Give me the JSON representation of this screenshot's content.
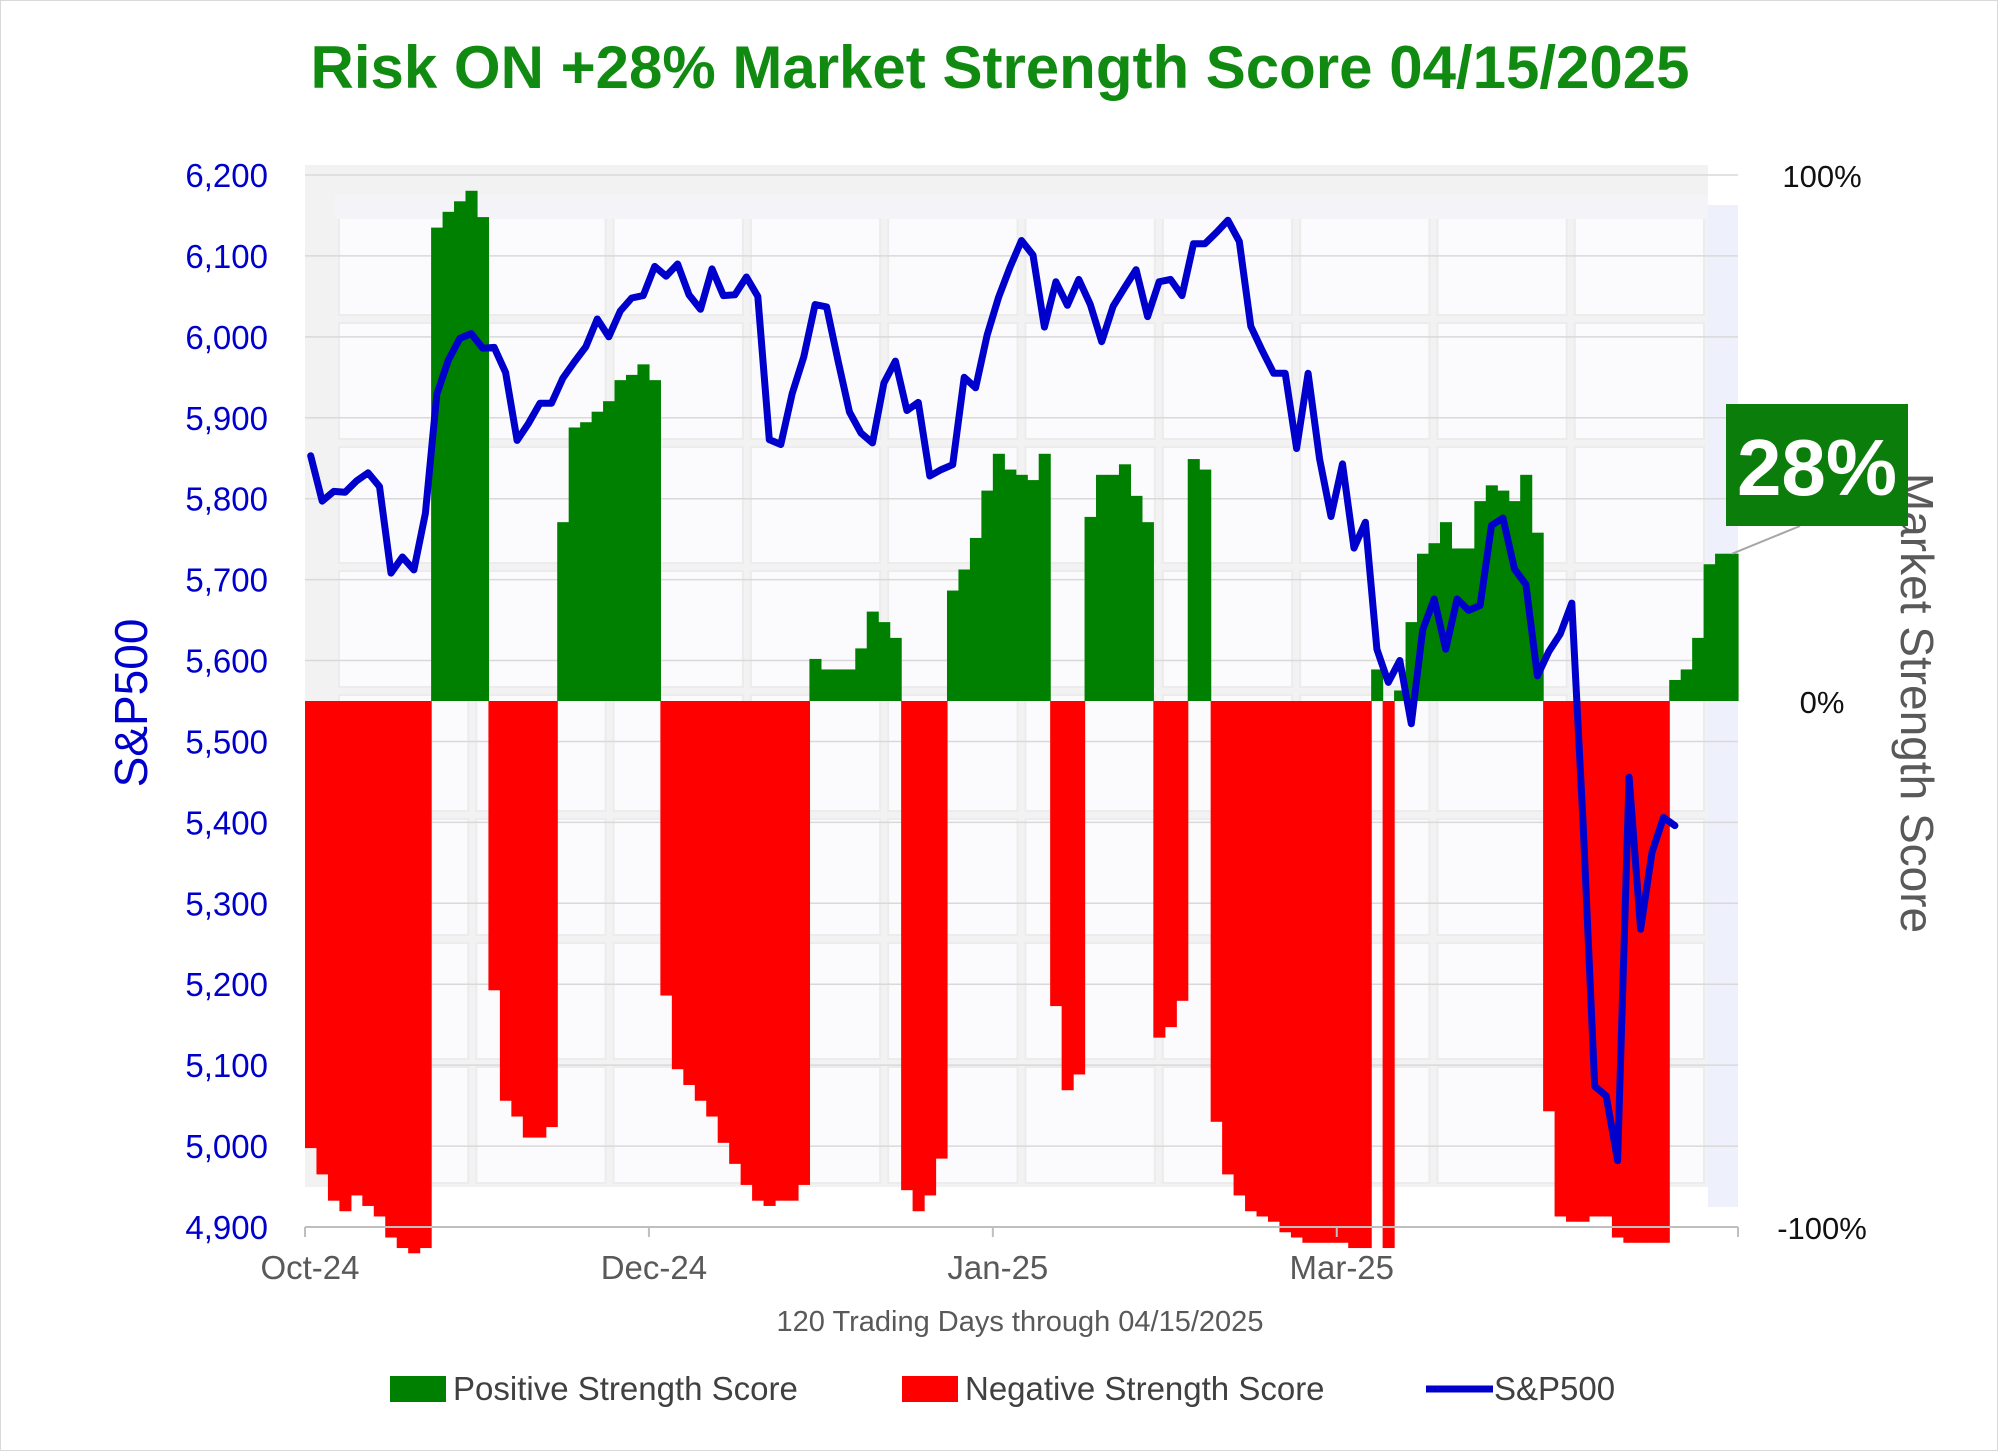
{
  "title": "Risk ON +28% Market Strength Score 04/15/2025",
  "badge": {
    "text": "28%",
    "color": "#0b7d0b"
  },
  "colors": {
    "positive": "#008000",
    "negative": "#ff0000",
    "sp500": "#0000cc",
    "title": "#118a11"
  },
  "chart_data": {
    "type": "bar+line",
    "title": "Risk ON +28% Market Strength Score 04/15/2025",
    "xlabel": "120 Trading Days through 04/15/2025",
    "ylabel": "S&P500",
    "y2label": "Market Strength Score",
    "x_tick_labels": [
      "Oct-24",
      "Dec-24",
      "Jan-25",
      "Mar-25"
    ],
    "x_tick_positions": [
      0,
      30,
      60,
      90
    ],
    "ylim": [
      4900,
      6200
    ],
    "yticks": [
      4900,
      5000,
      5100,
      5200,
      5300,
      5400,
      5500,
      5600,
      5700,
      5800,
      5900,
      6000,
      6100,
      6200
    ],
    "ytick_labels": [
      "4,900",
      "5,000",
      "5,100",
      "5,200",
      "5,300",
      "5,400",
      "5,500",
      "5,600",
      "5,700",
      "5,800",
      "5,900",
      "6,000",
      "6,100",
      "6,200"
    ],
    "y2lim": [
      -100,
      100
    ],
    "y2ticks": [
      -100,
      0,
      100
    ],
    "y2tick_labels": [
      "-100%",
      "0%",
      "100%"
    ],
    "legend": [
      "Positive Strength Score",
      "Negative Strength Score",
      "S&P500"
    ],
    "legend_position": "bottom",
    "grid": true,
    "score_series": {
      "name": "Market Strength Score",
      "unit": "%",
      "values": [
        -85,
        -90,
        -95,
        -97,
        -94,
        -96,
        -98,
        -102,
        -104,
        -105,
        -104,
        90,
        93,
        95,
        97,
        92,
        -55,
        -76,
        -79,
        -83,
        -83,
        -81,
        34,
        52,
        53,
        55,
        57,
        61,
        62,
        64,
        61,
        -56,
        -70,
        -73,
        -76,
        -79,
        -84,
        -88,
        -92,
        -95,
        -96,
        -95,
        -95,
        -92,
        8,
        6,
        6,
        6,
        10,
        17,
        15,
        12,
        -93,
        -97,
        -94,
        -87,
        21,
        25,
        31,
        40,
        47,
        44,
        43,
        42,
        47,
        -58,
        -74,
        -71,
        35,
        43,
        43,
        45,
        39,
        34,
        -64,
        -62,
        -57,
        46,
        44,
        -80,
        -90,
        -94,
        -97,
        -98,
        -99,
        -101,
        -102,
        -103,
        -103,
        -103,
        -103,
        -104,
        -104,
        6,
        -104,
        2,
        15,
        28,
        30,
        34,
        29,
        29,
        38,
        41,
        40,
        38,
        43,
        32,
        -78,
        -98,
        -99,
        -99,
        -98,
        -98,
        -102,
        -103,
        -103,
        -103,
        -103,
        4,
        6,
        12,
        26,
        28,
        28
      ]
    },
    "sp500_series": {
      "name": "S&P500",
      "values": [
        5853,
        5797,
        5809,
        5808,
        5822,
        5832,
        5815,
        5708,
        5728,
        5712,
        5782,
        5929,
        5971,
        5998,
        6004,
        5986,
        5987,
        5956,
        5872,
        5893,
        5918,
        5918,
        5949,
        5969,
        5988,
        6022,
        6000,
        6032,
        6048,
        6051,
        6087,
        6075,
        6090,
        6052,
        6034,
        6084,
        6051,
        6052,
        6074,
        6050,
        5873,
        5867,
        5930,
        5975,
        6040,
        6037,
        5970,
        5907,
        5881,
        5869,
        5943,
        5970,
        5909,
        5919,
        5828,
        5836,
        5842,
        5950,
        5937,
        6002,
        6049,
        6086,
        6119,
        6101,
        6012,
        6068,
        6039,
        6071,
        6040,
        5994,
        6038,
        6061,
        6083,
        6025,
        6068,
        6071,
        6051,
        6115,
        6115,
        6129,
        6144,
        6118,
        6013,
        5983,
        5955,
        5955,
        5862,
        5955,
        5849,
        5778,
        5843,
        5739,
        5771,
        5614,
        5573,
        5600,
        5522,
        5638,
        5676,
        5614,
        5676,
        5662,
        5668,
        5767,
        5776,
        5713,
        5694,
        5581,
        5611,
        5633,
        5671,
        5396,
        5074,
        5062,
        4982,
        5456,
        5268,
        5363,
        5406,
        5396
      ]
    }
  },
  "legend": {
    "positive_label": "Positive Strength Score",
    "negative_label": "Negative Strength Score",
    "sp500_label": "S&P500"
  }
}
